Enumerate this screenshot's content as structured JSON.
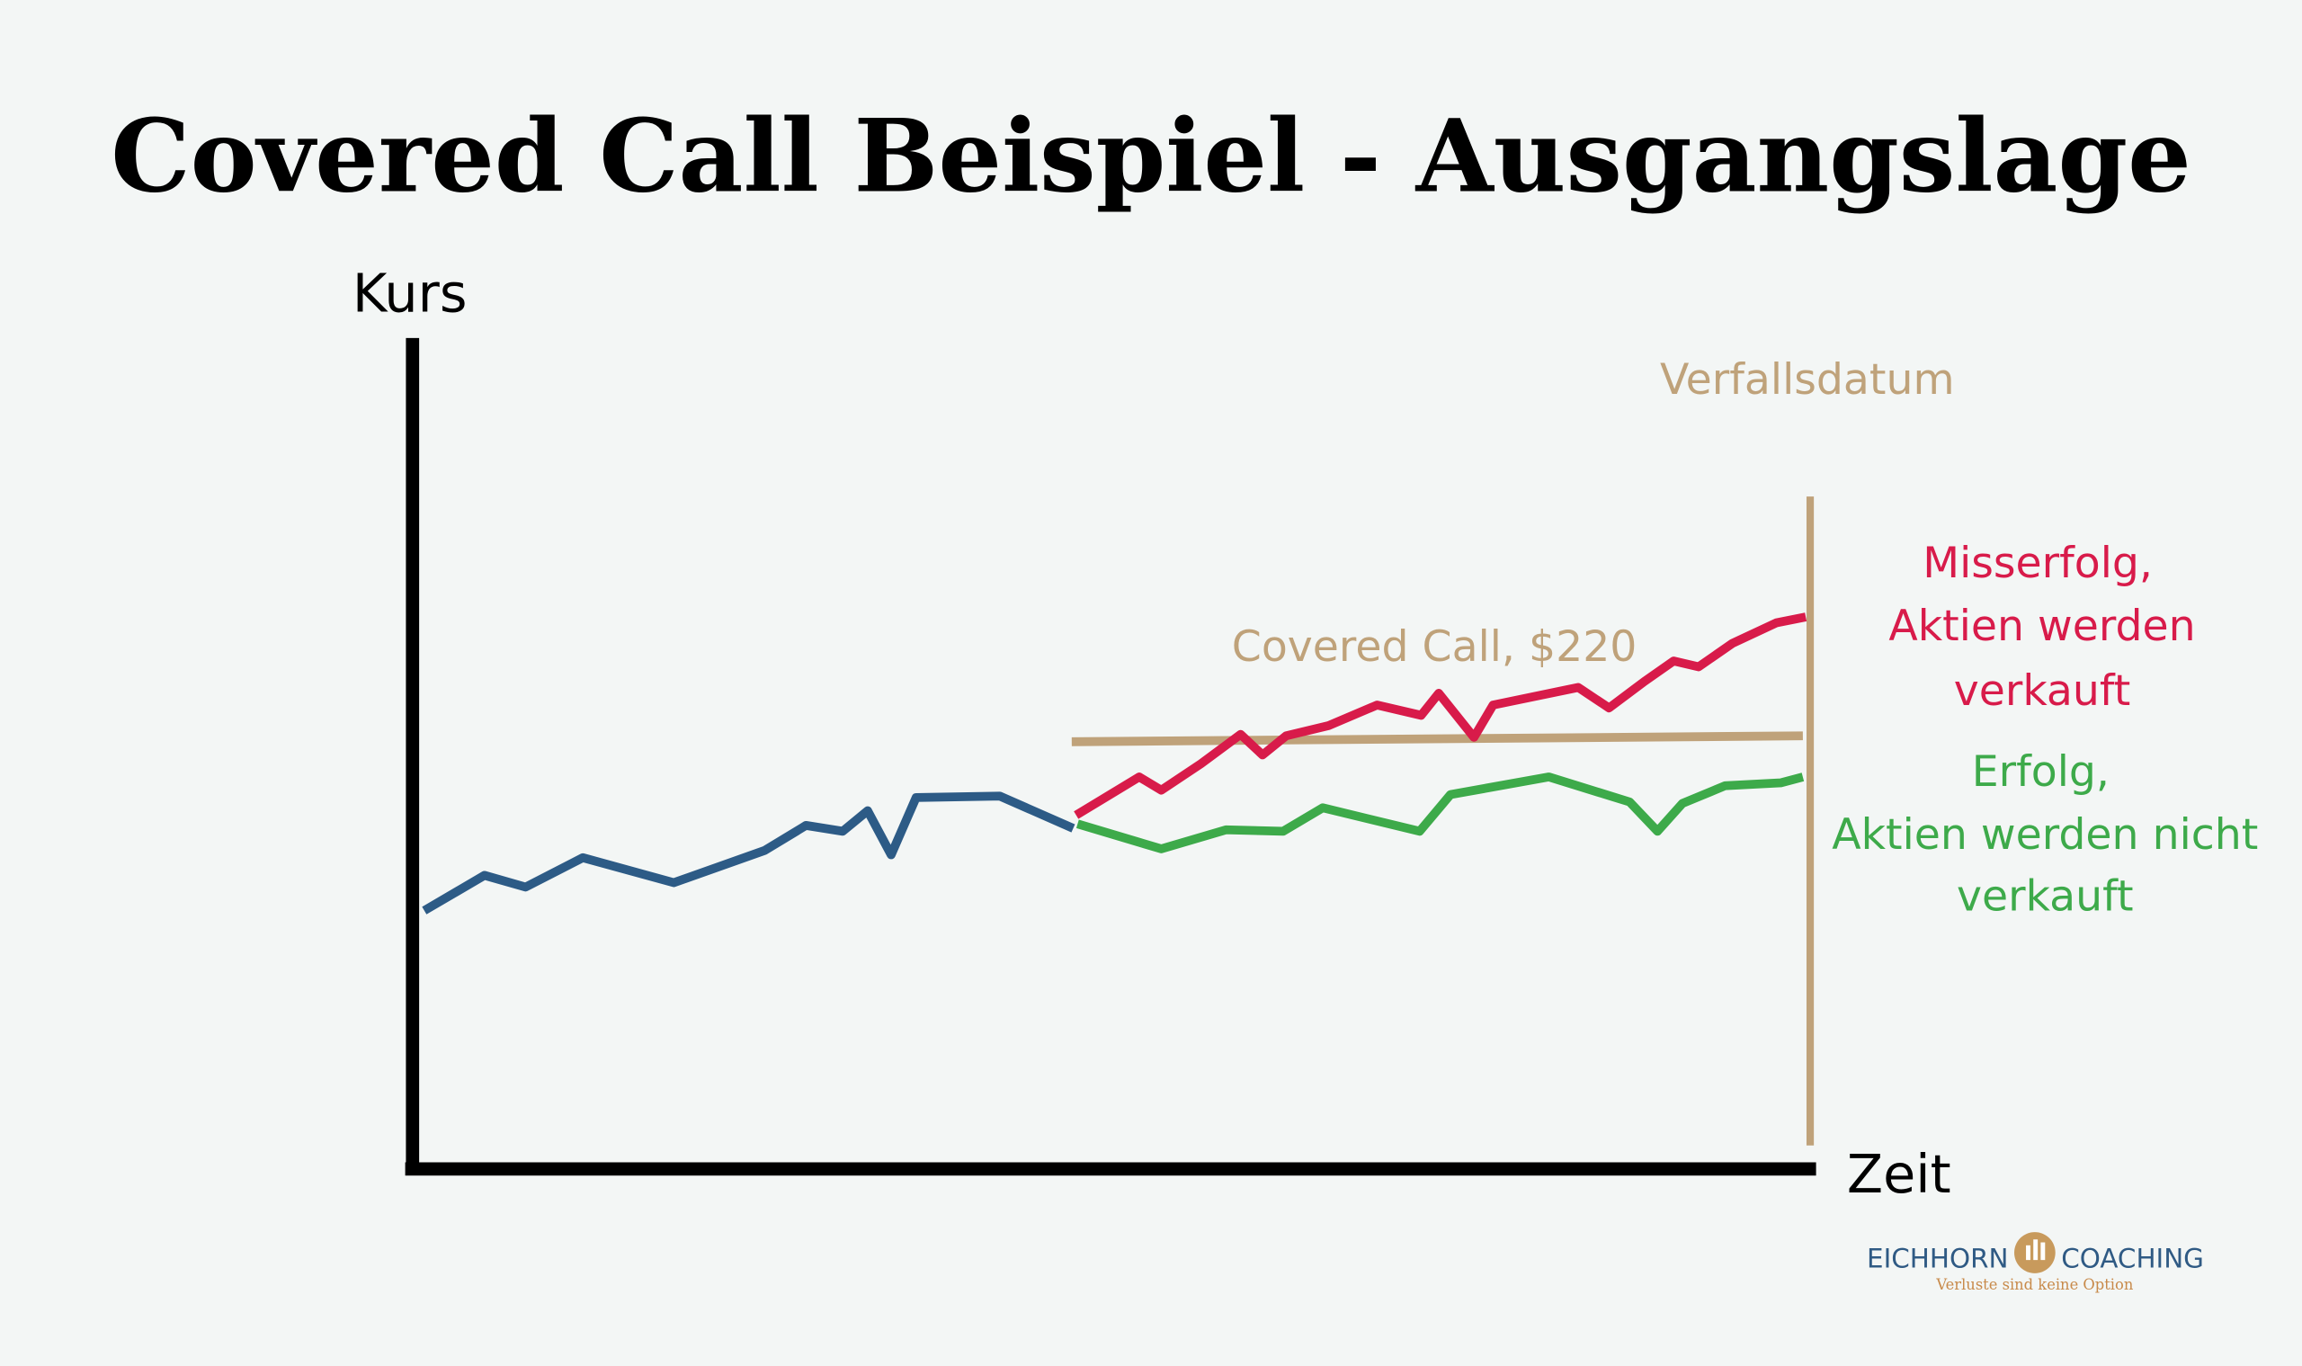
{
  "title": "Covered Call Beispiel - Ausgangslage",
  "axis_labels": {
    "y": "Kurs",
    "x": "Zeit"
  },
  "annotations": {
    "expiry": "Verfallsdatum",
    "covered_call": "Covered Call, $220"
  },
  "outcomes": {
    "failure": [
      "Misserfolg,",
      "Aktien werden",
      "verkauft"
    ],
    "success": [
      "Erfolg,",
      "Aktien werden nicht",
      "verkauft"
    ]
  },
  "logo": {
    "left": "EICHHORN",
    "right": "COACHING",
    "tagline": "Verluste sind keine Option"
  }
}
